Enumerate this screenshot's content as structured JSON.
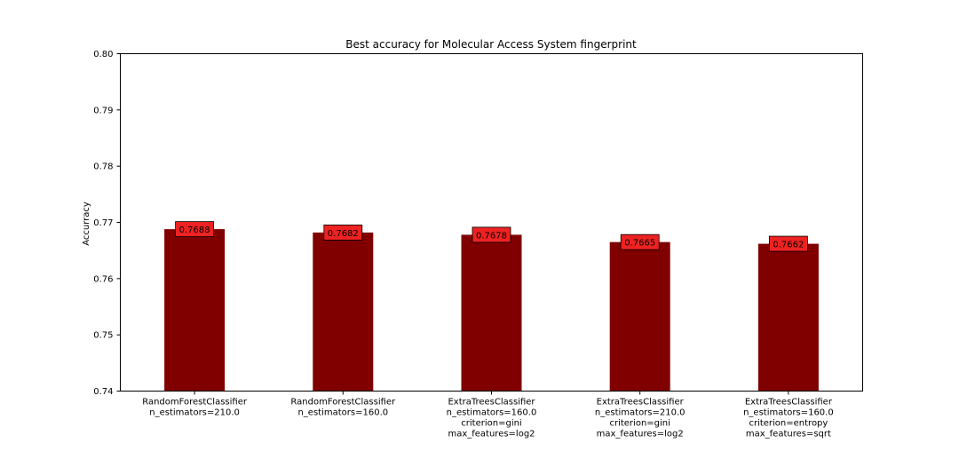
{
  "chart_data": {
    "type": "bar",
    "title": "Best accuracy for Molecular Access System fingerprint",
    "xlabel": "",
    "ylabel": "Accurracy",
    "ylim": [
      0.74,
      0.8
    ],
    "yticks": [
      "0.74",
      "0.75",
      "0.76",
      "0.77",
      "0.78",
      "0.79",
      "0.80"
    ],
    "grid": false,
    "legend": "none",
    "categories": [
      [
        "RandomForestClassifier",
        "n_estimators=210.0"
      ],
      [
        "RandomForestClassifier",
        "n_estimators=160.0"
      ],
      [
        "ExtraTreesClassifier",
        "n_estimators=160.0",
        "criterion=gini",
        "max_features=log2"
      ],
      [
        "ExtraTreesClassifier",
        "n_estimators=210.0",
        "criterion=gini",
        "max_features=log2"
      ],
      [
        "ExtraTreesClassifier",
        "n_estimators=160.0",
        "criterion=entropy",
        "max_features=sqrt"
      ]
    ],
    "values": [
      0.7688,
      0.7682,
      0.7678,
      0.7665,
      0.7662
    ],
    "value_labels": [
      "0.7688",
      "0.7682",
      "0.7678",
      "0.7665",
      "0.7662"
    ],
    "colors": {
      "bar": "#800000",
      "label_box": "#ee2222",
      "axis": "#000000"
    }
  }
}
